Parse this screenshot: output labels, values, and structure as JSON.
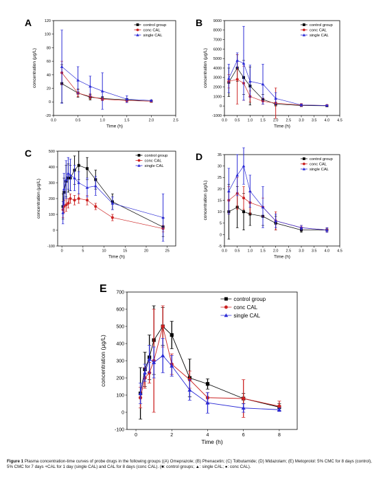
{
  "caption": {
    "label": "Figure 1",
    "text": "Plasma concentration-time curves of probe drugs in the following groups ((A) Omeprazole; (B) Phenacetin; (C) Tolbutamide; (D) Midazolam; (E) Metoprolol: 5% CMC for 8 days (control), 5% CMC for 7 days +CAL for 1 day (single CAL) and CAL for 8 days (conc CAL). (■: control groups; ▲: single CAL; ●: conc CAL)."
  },
  "colors": {
    "control": "#000000",
    "conc": "#cc2222",
    "single": "#2b2bd6"
  },
  "chart_data": [
    {
      "panel": "A",
      "type": "line",
      "xlabel": "Time (h)",
      "ylabel": "concentration (μg/L)",
      "xlim": [
        0,
        2.5
      ],
      "ylim": [
        -20,
        120
      ],
      "xticks": [
        0.0,
        0.5,
        1.0,
        1.5,
        2.0,
        2.5
      ],
      "xtick_labels": [
        "0.0",
        "0.5",
        "1.0",
        "1.5",
        "2.0",
        "2.5"
      ],
      "yticks": [
        -20,
        0,
        20,
        40,
        60,
        80,
        100,
        120
      ],
      "legend": [
        "control group",
        "conc CAL",
        "single CAL"
      ],
      "legend_position": "top-right",
      "series": [
        {
          "key": "control",
          "x": [
            0.17,
            0.5,
            0.75,
            1.0,
            1.5,
            2.0
          ],
          "y": [
            27,
            13,
            7,
            5,
            3,
            1
          ],
          "err": [
            28,
            6,
            4,
            3,
            2,
            1
          ]
        },
        {
          "key": "conc",
          "x": [
            0.17,
            0.5,
            0.75,
            1.0,
            1.5,
            2.0
          ],
          "y": [
            43,
            13,
            8,
            4,
            2,
            1
          ],
          "err": [
            17,
            5,
            4,
            2,
            2,
            1
          ]
        },
        {
          "key": "single",
          "x": [
            0.17,
            0.5,
            0.75,
            1.0,
            1.5,
            2.0
          ],
          "y": [
            52,
            32,
            23,
            16,
            4,
            2
          ],
          "err": [
            54,
            20,
            15,
            27,
            5,
            1
          ]
        }
      ]
    },
    {
      "panel": "B",
      "type": "line",
      "xlabel": "Time (h)",
      "ylabel": "concentration (μg/L)",
      "xlim": [
        0,
        4.5
      ],
      "ylim": [
        -1000,
        9000
      ],
      "xticks": [
        0.0,
        0.5,
        1.0,
        1.5,
        2.0,
        2.5,
        3.0,
        3.5,
        4.0,
        4.5
      ],
      "xtick_labels": [
        "0.0",
        "0.5",
        "1.0",
        "1.5",
        "2.0",
        "2.5",
        "3.0",
        "3.5",
        "4.0",
        "4.5"
      ],
      "yticks": [
        -1000,
        0,
        1000,
        2000,
        3000,
        4000,
        5000,
        6000,
        7000,
        8000,
        9000
      ],
      "legend": [
        "control group",
        "conc CAL",
        "single CAL"
      ],
      "legend_position": "top-right",
      "series": [
        {
          "key": "control",
          "x": [
            0.17,
            0.5,
            0.75,
            1.0,
            1.5,
            2.0,
            3.0,
            4.0
          ],
          "y": [
            2500,
            4000,
            3000,
            2100,
            700,
            200,
            50,
            20
          ],
          "err": [
            1500,
            1400,
            1800,
            2000,
            500,
            200,
            50,
            20
          ]
        },
        {
          "key": "conc",
          "x": [
            0.17,
            0.5,
            0.75,
            1.0,
            1.5,
            2.0,
            3.0,
            4.0
          ],
          "y": [
            2600,
            2800,
            2400,
            1000,
            500,
            300,
            100,
            50
          ],
          "err": [
            700,
            2600,
            1800,
            600,
            300,
            1600,
            150,
            50
          ]
        },
        {
          "key": "single",
          "x": [
            0.17,
            0.5,
            0.75,
            1.0,
            1.5,
            2.0,
            3.0,
            4.0
          ],
          "y": [
            2900,
            4800,
            4500,
            2600,
            2300,
            800,
            100,
            50
          ],
          "err": [
            1500,
            800,
            3900,
            1700,
            2100,
            600,
            100,
            40
          ]
        }
      ]
    },
    {
      "panel": "C",
      "type": "line",
      "xlabel": "Time (h)",
      "ylabel": "concentration (μg/L)",
      "xlim": [
        -1,
        27
      ],
      "ylim": [
        -100,
        500
      ],
      "xticks": [
        0,
        5,
        10,
        15,
        20,
        25
      ],
      "xtick_labels": [
        "0",
        "5",
        "10",
        "15",
        "20",
        "25"
      ],
      "yticks": [
        -100,
        0,
        100,
        200,
        300,
        400,
        500
      ],
      "legend": [
        "control group",
        "conc CAL",
        "single CAL"
      ],
      "legend_position": "top-right",
      "series": [
        {
          "key": "control",
          "x": [
            0.25,
            0.5,
            1,
            1.5,
            2,
            3,
            4,
            6,
            8,
            12,
            24
          ],
          "y": [
            150,
            240,
            310,
            330,
            330,
            380,
            410,
            390,
            320,
            180,
            20
          ],
          "err": [
            80,
            90,
            100,
            90,
            80,
            90,
            90,
            70,
            60,
            50,
            60
          ]
        },
        {
          "key": "conc",
          "x": [
            0.25,
            0.5,
            1,
            1.5,
            2,
            3,
            4,
            6,
            8,
            12,
            24
          ],
          "y": [
            130,
            150,
            160,
            170,
            200,
            190,
            200,
            190,
            150,
            80,
            10
          ],
          "err": [
            50,
            40,
            40,
            30,
            30,
            30,
            30,
            30,
            20,
            20,
            20
          ]
        },
        {
          "key": "single",
          "x": [
            0.25,
            0.5,
            1,
            1.5,
            2,
            3,
            4,
            6,
            8,
            12,
            24
          ],
          "y": [
            110,
            260,
            320,
            360,
            350,
            330,
            300,
            270,
            280,
            170,
            80
          ],
          "err": [
            70,
            100,
            120,
            100,
            100,
            80,
            70,
            60,
            60,
            40,
            150
          ]
        }
      ]
    },
    {
      "panel": "D",
      "type": "line",
      "xlabel": "Time (h)",
      "ylabel": "concentration (μg/L)",
      "xlim": [
        0,
        4.5
      ],
      "ylim": [
        -5,
        35
      ],
      "xticks": [
        0.0,
        0.5,
        1.0,
        1.5,
        2.0,
        2.5,
        3.0,
        3.5,
        4.0,
        4.5
      ],
      "xtick_labels": [
        "0.0",
        "0.5",
        "1.0",
        "1.5",
        "2.0",
        "2.5",
        "3.0",
        "3.5",
        "4.0",
        "4.5"
      ],
      "yticks": [
        -5,
        0,
        5,
        10,
        15,
        20,
        25,
        30,
        35
      ],
      "legend": [
        "control group",
        "conc CAL",
        "single CAL"
      ],
      "legend_position": "top-right",
      "series": [
        {
          "key": "control",
          "x": [
            0.17,
            0.5,
            0.75,
            1.0,
            1.5,
            2.0,
            3.0,
            4.0
          ],
          "y": [
            10,
            12,
            10,
            9,
            8,
            5,
            2,
            2
          ],
          "err": [
            12,
            9,
            8,
            5,
            4,
            3,
            1,
            1
          ]
        },
        {
          "key": "conc",
          "x": [
            0.17,
            0.5,
            0.75,
            1.0,
            1.5,
            2.0,
            3.0,
            4.0
          ],
          "y": [
            15,
            18,
            16,
            14,
            12,
            6,
            3,
            2
          ],
          "err": [
            6,
            7,
            5,
            5,
            4,
            4,
            1,
            1
          ]
        },
        {
          "key": "single",
          "x": [
            0.17,
            0.5,
            0.75,
            1.0,
            1.5,
            2.0,
            3.0,
            4.0
          ],
          "y": [
            19,
            26,
            30,
            19,
            12,
            6,
            3,
            2
          ],
          "err": [
            10,
            9,
            8,
            7,
            9,
            3,
            1,
            1
          ]
        }
      ]
    },
    {
      "panel": "E",
      "type": "line",
      "xlabel": "Time (h)",
      "ylabel": "concentration (μg/L)",
      "xlim": [
        -0.5,
        9
      ],
      "ylim": [
        -100,
        700
      ],
      "xticks": [
        0,
        2,
        4,
        6,
        8
      ],
      "xtick_labels": [
        "0",
        "2",
        "4",
        "6",
        "8"
      ],
      "yticks": [
        -100,
        0,
        100,
        200,
        300,
        400,
        500,
        600,
        700
      ],
      "legend": [
        "control group",
        "conc CAL",
        "single CAL"
      ],
      "legend_position": "top-right",
      "series": [
        {
          "key": "control",
          "x": [
            0.25,
            0.5,
            0.75,
            1,
            1.5,
            2,
            3,
            4,
            6,
            8
          ],
          "y": [
            110,
            250,
            320,
            420,
            500,
            450,
            200,
            165,
            80,
            30
          ],
          "err": [
            150,
            100,
            130,
            200,
            110,
            80,
            110,
            30,
            30,
            20
          ]
        },
        {
          "key": "conc",
          "x": [
            0.25,
            0.5,
            0.75,
            1,
            1.5,
            2,
            3,
            4,
            6,
            8
          ],
          "y": [
            85,
            200,
            230,
            300,
            500,
            280,
            190,
            85,
            80,
            35
          ],
          "err": [
            60,
            60,
            60,
            300,
            120,
            60,
            50,
            30,
            110,
            30
          ]
        },
        {
          "key": "single",
          "x": [
            0.25,
            0.5,
            0.75,
            1,
            1.5,
            2,
            3,
            4,
            6,
            8
          ],
          "y": [
            110,
            230,
            310,
            290,
            330,
            270,
            130,
            55,
            25,
            15
          ],
          "err": [
            60,
            50,
            80,
            90,
            100,
            60,
            60,
            60,
            25,
            10
          ]
        }
      ]
    }
  ]
}
